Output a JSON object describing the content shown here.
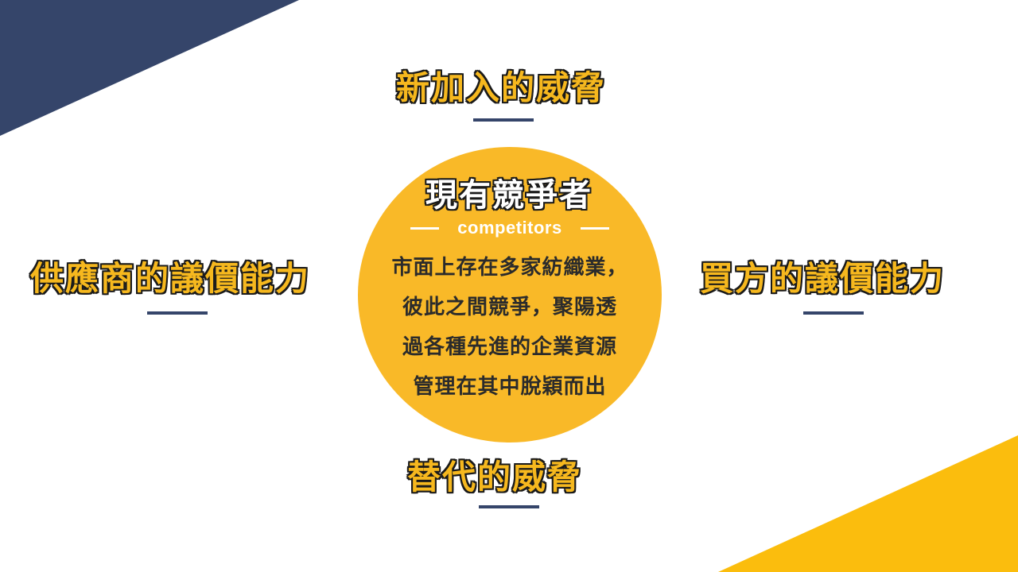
{
  "slide": {
    "colors": {
      "navy": "#35456a",
      "yellow": "#f6b81e",
      "circle": "#f9b928",
      "corner_yellow": "#fbbd0d"
    },
    "top_force": "新加入的威脅",
    "left_force": "供應商的議價能力",
    "right_force": "買方的議價能力",
    "bottom_force": "替代的威脅",
    "center": {
      "title": "現有競爭者",
      "subtitle": "competitors",
      "lines": [
        "市面上存在多家紡織業，",
        "彼此之間競爭，聚陽透",
        "過各種先進的企業資源",
        "管理在其中脫穎而出"
      ]
    }
  }
}
